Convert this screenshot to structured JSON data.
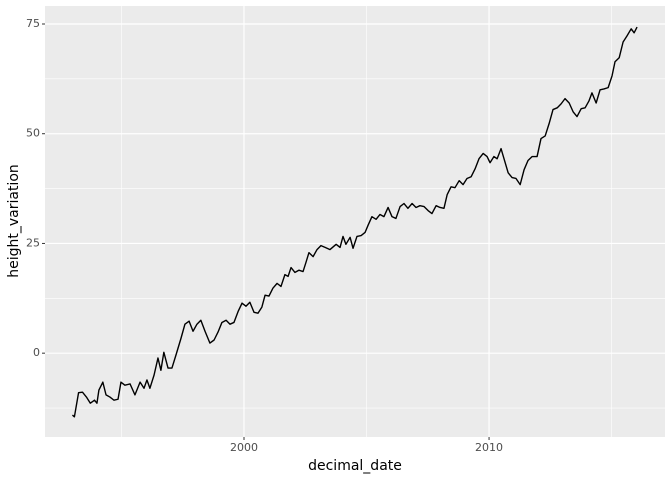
{
  "chart_data": {
    "type": "line",
    "x_label": "decimal_date",
    "y_label": "height_variation",
    "xlim": [
      1991.88,
      2017.18
    ],
    "ylim": [
      -19.1,
      79.1
    ],
    "xticks": [
      2000,
      2010
    ],
    "yticks": [
      0,
      25,
      50,
      75
    ],
    "xminor": [
      1995,
      2005,
      2015
    ],
    "yminor": [
      -12.5,
      12.5,
      37.5,
      62.5
    ],
    "grid": true,
    "background": "#ebebeb",
    "series": [
      {
        "color": "#000000",
        "x": [
          1993.0,
          1993.08,
          1993.25,
          1993.41,
          1993.57,
          1993.73,
          1993.9,
          1994.0,
          1994.08,
          1994.24,
          1994.37,
          1994.53,
          1994.69,
          1994.86,
          1994.98,
          1995.14,
          1995.35,
          1995.55,
          1995.76,
          1995.92,
          1996.04,
          1996.16,
          1996.33,
          1996.49,
          1996.61,
          1996.73,
          1996.9,
          1997.06,
          1997.22,
          1997.43,
          1997.59,
          1997.76,
          1997.92,
          1998.08,
          1998.24,
          1998.41,
          1998.61,
          1998.78,
          1998.94,
          1999.1,
          1999.27,
          1999.43,
          1999.59,
          1999.76,
          1999.92,
          2000.08,
          2000.24,
          2000.41,
          2000.57,
          2000.73,
          2000.86,
          2001.02,
          2001.18,
          2001.35,
          2001.51,
          2001.67,
          2001.8,
          2001.92,
          2002.08,
          2002.24,
          2002.41,
          2002.53,
          2002.65,
          2002.82,
          2002.98,
          2003.14,
          2003.31,
          2003.51,
          2003.76,
          2003.92,
          2004.04,
          2004.16,
          2004.33,
          2004.45,
          2004.61,
          2004.78,
          2004.94,
          2005.06,
          2005.22,
          2005.39,
          2005.55,
          2005.71,
          2005.88,
          2006.04,
          2006.2,
          2006.37,
          2006.53,
          2006.69,
          2006.86,
          2007.02,
          2007.18,
          2007.35,
          2007.51,
          2007.67,
          2007.84,
          2008.0,
          2008.16,
          2008.29,
          2008.45,
          2008.61,
          2008.78,
          2008.94,
          2009.1,
          2009.27,
          2009.43,
          2009.59,
          2009.76,
          2009.92,
          2010.04,
          2010.2,
          2010.33,
          2010.49,
          2010.61,
          2010.78,
          2010.94,
          2011.1,
          2011.27,
          2011.43,
          2011.59,
          2011.76,
          2011.96,
          2012.12,
          2012.29,
          2012.45,
          2012.61,
          2012.78,
          2012.94,
          2013.1,
          2013.27,
          2013.43,
          2013.59,
          2013.76,
          2013.92,
          2014.08,
          2014.2,
          2014.37,
          2014.53,
          2014.69,
          2014.86,
          2015.02,
          2015.14,
          2015.31,
          2015.47,
          2015.63,
          2015.8,
          2015.92,
          2016.04
        ],
        "values": [
          -14.1,
          -14.5,
          -9.0,
          -8.9,
          -10.0,
          -11.4,
          -10.7,
          -11.4,
          -8.4,
          -6.6,
          -9.5,
          -10.0,
          -10.7,
          -10.5,
          -6.6,
          -7.3,
          -7.0,
          -9.5,
          -6.6,
          -8.0,
          -6.1,
          -8.0,
          -5.0,
          -1.1,
          -3.9,
          0.2,
          -3.4,
          -3.4,
          -0.5,
          3.4,
          6.6,
          7.3,
          5.0,
          6.6,
          7.5,
          5.0,
          2.3,
          3.0,
          4.8,
          7.0,
          7.5,
          6.6,
          7.0,
          9.5,
          11.4,
          10.7,
          11.6,
          9.3,
          9.1,
          10.5,
          13.2,
          13.0,
          14.8,
          15.9,
          15.2,
          17.9,
          17.5,
          19.5,
          18.4,
          18.9,
          18.6,
          20.7,
          22.9,
          22.0,
          23.6,
          24.5,
          24.1,
          23.6,
          24.8,
          24.1,
          26.6,
          24.8,
          26.4,
          23.9,
          26.6,
          26.8,
          27.5,
          29.1,
          31.1,
          30.5,
          31.6,
          31.1,
          33.2,
          31.1,
          30.7,
          33.4,
          34.1,
          33.0,
          34.1,
          33.2,
          33.6,
          33.4,
          32.5,
          31.8,
          33.6,
          33.2,
          33.0,
          36.1,
          37.9,
          37.7,
          39.3,
          38.4,
          39.8,
          40.2,
          42.0,
          44.3,
          45.5,
          44.8,
          43.4,
          44.8,
          44.3,
          46.6,
          44.3,
          41.1,
          40.0,
          39.8,
          38.4,
          41.8,
          43.9,
          44.8,
          44.8,
          48.9,
          49.5,
          52.3,
          55.5,
          55.9,
          56.8,
          58.0,
          57.0,
          55.0,
          53.9,
          55.7,
          55.9,
          57.5,
          59.3,
          57.0,
          60.0,
          60.2,
          60.5,
          63.2,
          66.4,
          67.3,
          70.9,
          72.3,
          73.9,
          73.0,
          74.3
        ]
      }
    ]
  }
}
